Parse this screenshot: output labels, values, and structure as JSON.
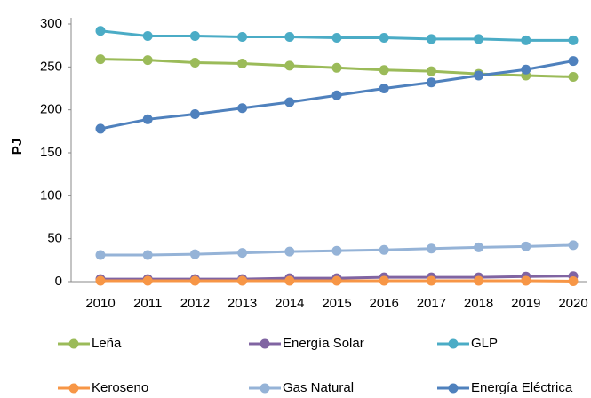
{
  "chart_data": {
    "type": "line",
    "ylabel": "PJ",
    "categories": [
      "2010",
      "2011",
      "2012",
      "2013",
      "2014",
      "2015",
      "2016",
      "2017",
      "2018",
      "2019",
      "2020"
    ],
    "series": [
      {
        "name": "Leña",
        "color": "#9bbb59",
        "values": [
          259,
          258,
          255,
          254,
          251.5,
          249,
          246.5,
          245,
          242,
          240,
          238.5
        ]
      },
      {
        "name": "Energía Solar",
        "color": "#8064a2",
        "values": [
          3,
          3,
          3,
          3,
          4,
          4,
          5,
          5,
          5,
          6,
          6.5
        ]
      },
      {
        "name": "GLP",
        "color": "#4bacc6",
        "values": [
          292,
          286,
          286,
          285,
          285,
          284,
          284,
          282.5,
          282.5,
          281,
          281
        ]
      },
      {
        "name": "Keroseno",
        "color": "#f79646",
        "values": [
          1,
          1,
          1,
          1,
          1,
          1,
          1,
          1,
          1,
          1,
          0.5
        ]
      },
      {
        "name": "Gas Natural",
        "color": "#95b3d7",
        "values": [
          31,
          31,
          32,
          33.5,
          35,
          36,
          37,
          38.5,
          40,
          41,
          42.5
        ]
      },
      {
        "name": "Energía Eléctrica",
        "color": "#4f81bd",
        "values": [
          178,
          189,
          195,
          202,
          209,
          217,
          225,
          232,
          240,
          247,
          257
        ]
      }
    ],
    "ylim": [
      0,
      300
    ],
    "yticks": [
      0,
      50,
      100,
      150,
      200,
      250,
      300
    ],
    "grid": false,
    "legend": "bottom"
  }
}
